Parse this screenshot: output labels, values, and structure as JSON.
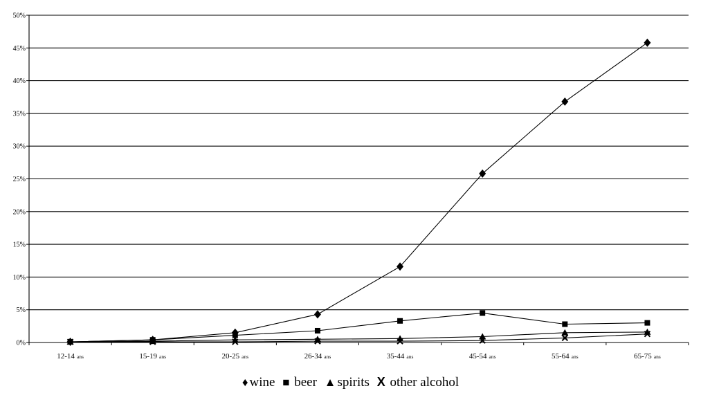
{
  "chart_data": {
    "type": "line",
    "title": "",
    "xlabel": "",
    "ylabel": "",
    "categories": [
      "12-14 ans",
      "15-19 ans",
      "20-25 ans",
      "26-34 ans",
      "35-44 ans",
      "45-54 ans",
      "55-64 ans",
      "65-75 ans"
    ],
    "x_tick_labels": [
      {
        "main": "12-14",
        "suffix": "ans"
      },
      {
        "main": "15-19",
        "suffix": "ans"
      },
      {
        "main": "20-25",
        "suffix": "ans"
      },
      {
        "main": "26-34",
        "suffix": "ans"
      },
      {
        "main": "35-44",
        "suffix": "ans"
      },
      {
        "main": "45-54",
        "suffix": "ans"
      },
      {
        "main": "55-64",
        "suffix": "ans"
      },
      {
        "main": "65-75",
        "suffix": "ans"
      }
    ],
    "y_ticks": [
      0,
      5,
      10,
      15,
      20,
      25,
      30,
      35,
      40,
      45,
      50
    ],
    "y_tick_labels": [
      "0%",
      "5%",
      "10%",
      "15%",
      "20%",
      "25%",
      "30%",
      "35%",
      "40%",
      "45%",
      "50%"
    ],
    "ylim": [
      0,
      50
    ],
    "grid": true,
    "legend_position": "bottom-center",
    "series": [
      {
        "name": "wine",
        "marker": "diamond",
        "marker_glyph": "♦",
        "values": [
          0.1,
          0.4,
          1.5,
          4.3,
          11.6,
          25.8,
          36.8,
          45.8
        ]
      },
      {
        "name": "beer",
        "marker": "square",
        "marker_glyph": "■",
        "values": [
          0.1,
          0.4,
          1.1,
          1.8,
          3.3,
          4.5,
          2.8,
          3.0
        ]
      },
      {
        "name": "spirits",
        "marker": "triangle",
        "marker_glyph": "▲",
        "values": [
          0.1,
          0.2,
          0.4,
          0.5,
          0.6,
          0.9,
          1.5,
          1.6
        ]
      },
      {
        "name": "other alcohol",
        "marker": "x",
        "marker_glyph": "X",
        "values": [
          0.1,
          0.1,
          0.1,
          0.2,
          0.2,
          0.3,
          0.7,
          1.3
        ]
      }
    ]
  }
}
